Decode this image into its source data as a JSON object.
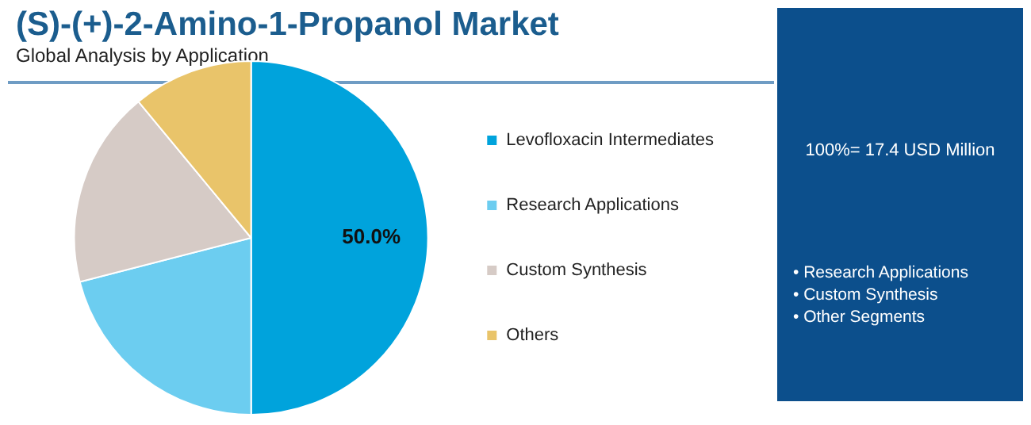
{
  "chart_data": {
    "type": "pie",
    "title": "(S)-(+)-2-Amino-1-Propanol Market",
    "subtitle": "Global Analysis by Application",
    "categories": [
      "Levofloxacin Intermediates",
      "Research Applications",
      "Custom Synthesis",
      "Others"
    ],
    "values": [
      50,
      21,
      18,
      11
    ],
    "colors": [
      "#00a3dc",
      "#6ccdf0",
      "#d6cbc6",
      "#e9c46a"
    ],
    "value_labels": [
      "50.0%",
      null,
      null,
      null
    ],
    "legend": "right",
    "annotations": [
      "100%= 17.4 USD Million",
      "• Research Applications",
      "• Custom Synthesis",
      "• Other Segments"
    ]
  }
}
